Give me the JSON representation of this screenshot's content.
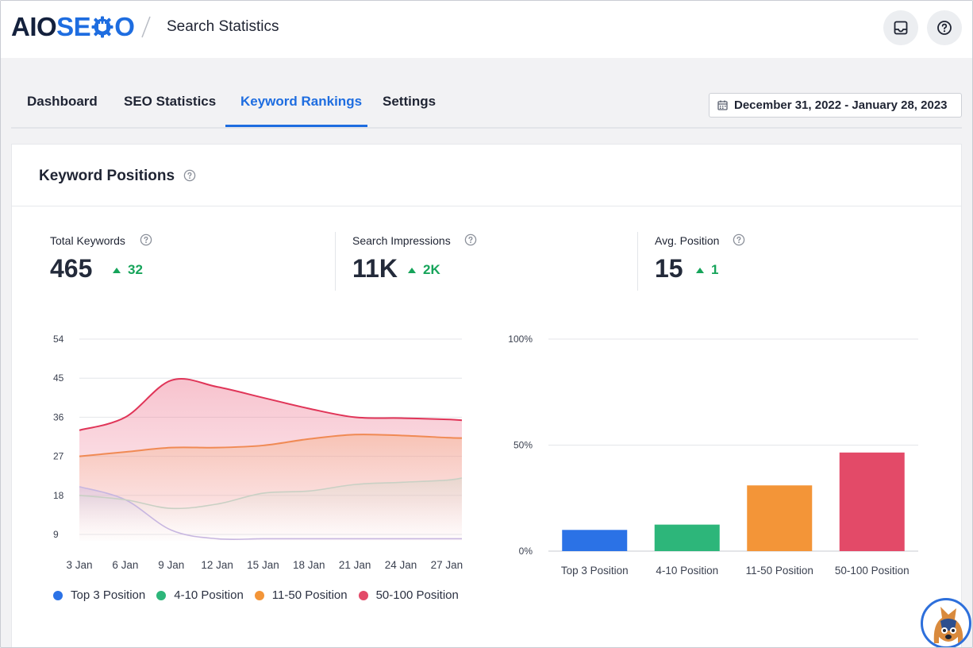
{
  "header": {
    "logo_aio": "AIO",
    "logo_seo_left": "SE",
    "logo_seo_right": "",
    "logo_o": "O",
    "page_title": "Search Statistics",
    "inbox_icon": "inbox-icon",
    "help_icon": "help-circle-icon"
  },
  "tabs": [
    {
      "label": "Dashboard",
      "active": false
    },
    {
      "label": "SEO Statistics",
      "active": false
    },
    {
      "label": "Keyword Rankings",
      "active": true
    },
    {
      "label": "Settings",
      "active": false
    }
  ],
  "date_range": {
    "icon": "calendar-icon",
    "label": "December 31, 2022 - January 28, 2023"
  },
  "card": {
    "title": "Keyword Positions",
    "stats": [
      {
        "label": "Total Keywords",
        "value": "465",
        "delta": "32"
      },
      {
        "label": "Search Impressions",
        "value": "11K",
        "delta": "2K"
      },
      {
        "label": "Avg. Position",
        "value": "15",
        "delta": "1"
      }
    ]
  },
  "colors": {
    "accent": "#1e6de0",
    "top3": "#2b72e6",
    "pos4_10": "#2db67a",
    "pos11_50": "#f39538",
    "pos50_100": "#e34a68",
    "positive": "#16a45a"
  },
  "chart_data": [
    {
      "type": "area",
      "x": [
        "3 Jan",
        "6 Jan",
        "9 Jan",
        "12 Jan",
        "15 Jan",
        "18 Jan",
        "21 Jan",
        "24 Jan",
        "27 Jan",
        "28 Jan"
      ],
      "x_ticks": [
        "3 Jan",
        "6 Jan",
        "9 Jan",
        "12 Jan",
        "15 Jan",
        "18 Jan",
        "21 Jan",
        "24 Jan",
        "27 Jan"
      ],
      "y_ticks": [
        9,
        18,
        27,
        36,
        45,
        54
      ],
      "ylim": [
        9,
        54
      ],
      "grid": true,
      "legend_position": "bottom-left",
      "series": [
        {
          "name": "Top 3 Position",
          "color": "#2b72e6",
          "values": [
            20,
            17,
            10,
            8,
            8,
            8,
            8,
            8,
            8,
            8
          ]
        },
        {
          "name": "4-10 Position",
          "color": "#2db67a",
          "values": [
            18,
            17,
            15,
            16,
            18.5,
            19,
            20.5,
            21,
            21.5,
            22
          ]
        },
        {
          "name": "11-50 Position",
          "color": "#f39538",
          "values": [
            27,
            28,
            29,
            29,
            29.5,
            31,
            32,
            31.8,
            31.3,
            31.2
          ]
        },
        {
          "name": "50-100 Position",
          "color": "#e34a68",
          "values": [
            33,
            36,
            44.5,
            43,
            40.5,
            38,
            36,
            35.8,
            35.5,
            35.3
          ]
        }
      ]
    },
    {
      "type": "bar",
      "categories": [
        "Top 3 Position",
        "4-10 Position",
        "11-50 Position",
        "50-100 Position"
      ],
      "values": [
        10,
        12.5,
        31,
        46.5
      ],
      "colors": [
        "#2b72e6",
        "#2db67a",
        "#f39538",
        "#e34a68"
      ],
      "y_ticks": [
        "0%",
        "50%",
        "100%"
      ],
      "ylim": [
        0,
        100
      ],
      "grid": true
    }
  ]
}
